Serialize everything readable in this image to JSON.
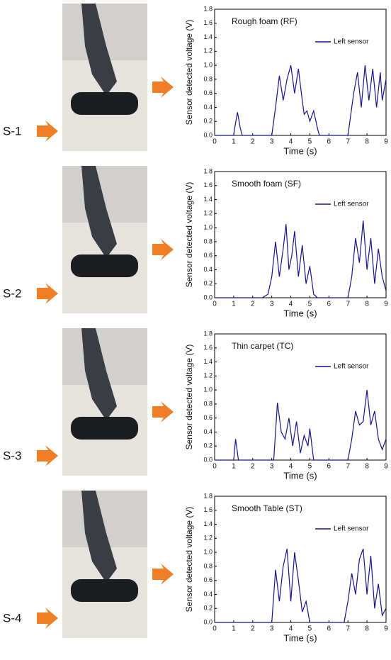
{
  "panel_labels": [
    "S-1",
    "S-2",
    "S-3",
    "S-4"
  ],
  "chart_data": [
    {
      "type": "line",
      "title": "Rough foam (RF)",
      "xlabel": "Time (s)",
      "ylabel": "Sensor detected voltage (V)",
      "x": [
        0,
        1,
        1.05,
        1.2,
        1.35,
        1.45,
        3.0,
        3.2,
        3.4,
        3.6,
        3.8,
        4.0,
        4.2,
        4.4,
        4.6,
        4.7,
        4.85,
        5.0,
        5.2,
        5.4,
        5.5,
        7.0,
        7.3,
        7.5,
        7.7,
        7.9,
        8.1,
        8.3,
        8.5,
        8.7,
        8.8,
        9.0
      ],
      "series": [
        {
          "name": "Left sensor",
          "color": "#14148c",
          "values": [
            0,
            0,
            0.1,
            0.33,
            0.1,
            0,
            0,
            0.4,
            0.85,
            0.5,
            0.8,
            1.0,
            0.6,
            0.95,
            0.5,
            0.3,
            0.35,
            0.2,
            0.35,
            0.1,
            0,
            0,
            0.6,
            0.9,
            0.4,
            1.0,
            0.5,
            0.95,
            0.4,
            0.9,
            0.5,
            0.8
          ]
        }
      ],
      "xlim": [
        0,
        9
      ],
      "xticks": [
        0,
        1,
        2,
        3,
        4,
        5,
        6,
        7,
        8,
        9
      ],
      "ylim": [
        0,
        1.8
      ],
      "yticks": [
        {
          "value": 0,
          "label": "0.0"
        },
        0.2,
        0.4,
        0.6,
        0.8,
        {
          "value": 1,
          "label": "1.0"
        },
        1.2,
        1.4,
        1.6,
        1.8
      ],
      "legend": "upper right"
    },
    {
      "type": "line",
      "title": "Smooth foam (SF)",
      "xlabel": "Time (s)",
      "ylabel": "Sensor detected voltage (V)",
      "x": [
        0,
        2.5,
        2.8,
        3.0,
        3.2,
        3.4,
        3.6,
        3.75,
        3.9,
        4.05,
        4.2,
        4.4,
        4.6,
        4.8,
        5.0,
        5.2,
        5.4,
        7.0,
        7.2,
        7.4,
        7.6,
        7.8,
        8.0,
        8.2,
        8.4,
        8.6,
        8.8,
        9.0
      ],
      "series": [
        {
          "name": "Left sensor",
          "color": "#14148c",
          "values": [
            0,
            0,
            0.05,
            0.3,
            0.8,
            0.3,
            0.7,
            1.05,
            0.4,
            0.6,
            0.95,
            0.3,
            0.75,
            0.2,
            0.45,
            0.05,
            0,
            0,
            0.3,
            0.85,
            0.5,
            1.1,
            0.4,
            0.85,
            0.2,
            0.7,
            0.3,
            0.1
          ]
        }
      ],
      "xlim": [
        0,
        9
      ],
      "xticks": [
        0,
        1,
        2,
        3,
        4,
        5,
        6,
        7,
        8,
        9
      ],
      "ylim": [
        0,
        1.8
      ],
      "yticks": [
        {
          "value": 0,
          "label": "0.0"
        },
        0.2,
        0.4,
        0.6,
        0.8,
        {
          "value": 1,
          "label": "1.0"
        },
        1.2,
        1.4,
        1.6,
        1.8
      ],
      "legend": "upper right"
    },
    {
      "type": "line",
      "title": "Thin carpet (TC)",
      "xlabel": "Time (s)",
      "ylabel": "Sensor detected voltage (V)",
      "x": [
        0,
        1.0,
        1.1,
        1.25,
        3.1,
        3.3,
        3.5,
        3.7,
        3.9,
        4.1,
        4.3,
        4.5,
        4.7,
        4.9,
        5.0,
        5.2,
        7.0,
        7.2,
        7.4,
        7.6,
        7.8,
        8.0,
        8.2,
        8.4,
        8.6,
        8.8,
        9.0
      ],
      "series": [
        {
          "name": "Left sensor",
          "color": "#14148c",
          "values": [
            0,
            0,
            0.3,
            0,
            0,
            0.82,
            0.4,
            0.3,
            0.6,
            0.2,
            0.55,
            0.1,
            0.35,
            0.2,
            0.45,
            0,
            0,
            0.3,
            0.7,
            0.5,
            0.55,
            1.0,
            0.5,
            0.7,
            0.3,
            0.15,
            0.3
          ]
        }
      ],
      "xlim": [
        0,
        9
      ],
      "xticks": [
        0,
        1,
        2,
        3,
        4,
        5,
        6,
        7,
        8,
        9
      ],
      "ylim": [
        0,
        1.8
      ],
      "yticks": [
        {
          "value": 0,
          "label": "0.0"
        },
        0.2,
        0.4,
        0.6,
        0.8,
        {
          "value": 1,
          "label": "1.0"
        },
        1.2,
        1.4,
        1.6,
        1.8
      ],
      "legend": "upper right"
    },
    {
      "type": "line",
      "title": "Smooth Table (ST)",
      "xlabel": "Time (s)",
      "ylabel": "Sensor detected voltage (V)",
      "x": [
        0,
        3.0,
        3.2,
        3.4,
        3.6,
        3.8,
        4.0,
        4.2,
        4.4,
        4.6,
        4.8,
        5.0,
        6.8,
        7.0,
        7.2,
        7.4,
        7.6,
        7.8,
        8.0,
        8.2,
        8.4,
        8.6,
        8.8,
        9.0
      ],
      "series": [
        {
          "name": "Left sensor",
          "color": "#14148c",
          "values": [
            0,
            0,
            0.75,
            0.3,
            0.8,
            1.05,
            0.3,
            1.0,
            0.6,
            0.15,
            0.3,
            0,
            0,
            0.3,
            0.7,
            0.4,
            0.9,
            1.05,
            0.4,
            0.95,
            0.2,
            0.55,
            0.1,
            0.2
          ]
        }
      ],
      "xlim": [
        0,
        9
      ],
      "xticks": [
        0,
        1,
        2,
        3,
        4,
        5,
        6,
        7,
        8,
        9
      ],
      "ylim": [
        0,
        1.8
      ],
      "yticks": [
        {
          "value": 0,
          "label": "0.0"
        },
        0.2,
        0.4,
        0.6,
        0.8,
        {
          "value": 1,
          "label": "1.0"
        },
        1.2,
        1.4,
        1.6,
        1.8
      ],
      "legend": "upper right"
    }
  ]
}
